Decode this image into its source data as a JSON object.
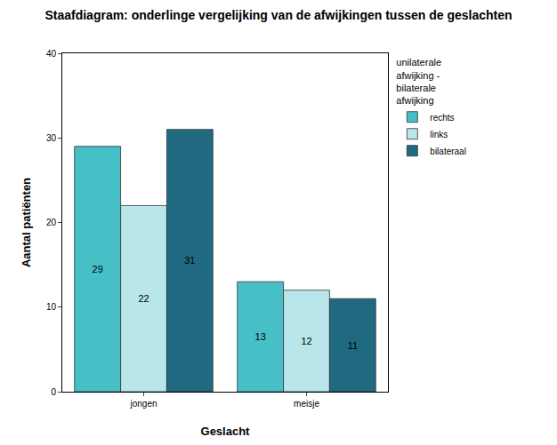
{
  "chart_data": {
    "type": "bar",
    "title": "Staafdiagram: onderlinge vergelijking van de afwijkingen tussen de geslachten",
    "x_label": "Geslacht",
    "y_label": "Aantal patiënten",
    "legend_title": "unilaterale afwijking - bilaterale afwijking",
    "categories": [
      "jongen",
      "meisje"
    ],
    "series": [
      {
        "name": "rechts",
        "color": "#46c0c6",
        "values": [
          29,
          13
        ]
      },
      {
        "name": "links",
        "color": "#b8e6ea",
        "values": [
          22,
          12
        ]
      },
      {
        "name": "bilateraal",
        "color": "#1f6a80",
        "values": [
          31,
          11
        ]
      }
    ],
    "ylim": [
      0,
      40
    ],
    "yticks": [
      0,
      10,
      20,
      30,
      40
    ],
    "grid": false,
    "legend": "top-right",
    "data_labels": true
  }
}
